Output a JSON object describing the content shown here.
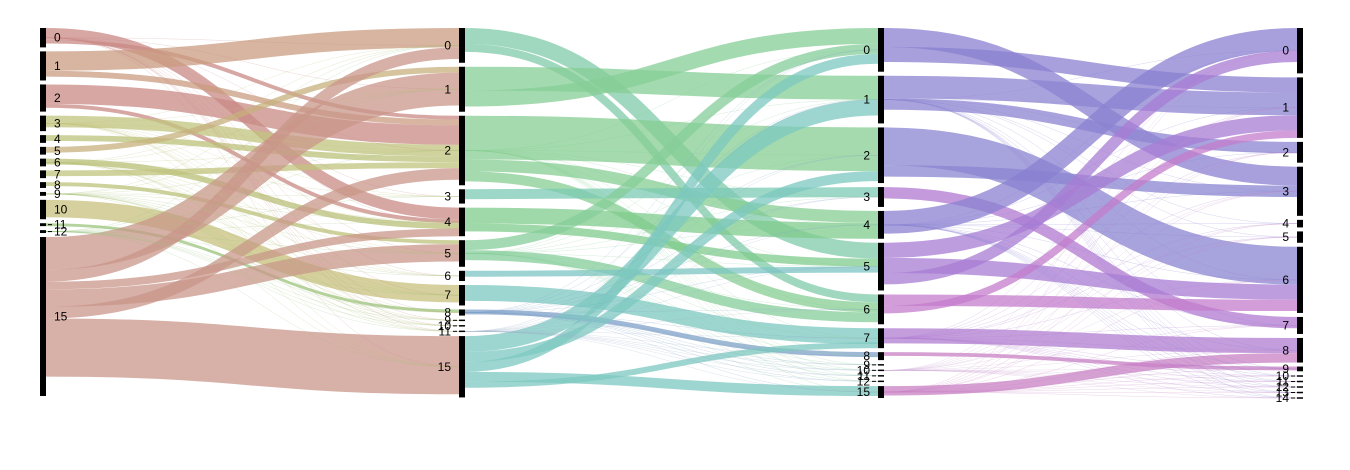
{
  "diagram": {
    "type": "alluvial",
    "columns": [
      {
        "id": "c0",
        "nodes": [
          {
            "label": "0",
            "size": 1.0,
            "color": "#c98a86"
          },
          {
            "label": "1",
            "size": 1.5,
            "color": "#c99c80"
          },
          {
            "label": "2",
            "size": 1.4,
            "color": "#c98a86"
          },
          {
            "label": "3",
            "size": 0.8,
            "color": "#c2c47e"
          },
          {
            "label": "4",
            "size": 0.4,
            "color": "#bcc27a"
          },
          {
            "label": "5",
            "size": 0.4,
            "color": "#c7b07e"
          },
          {
            "label": "6",
            "size": 0.4,
            "color": "#b9c078"
          },
          {
            "label": "7",
            "size": 0.4,
            "color": "#c2c47e"
          },
          {
            "label": "8",
            "size": 0.3,
            "color": "#bcc27a"
          },
          {
            "label": "9",
            "size": 0.2,
            "color": "#a8c47c"
          },
          {
            "label": "10",
            "size": 1.0,
            "color": "#c7c07c"
          },
          {
            "label": "11",
            "size": 0.15,
            "color": "#9cc47e"
          },
          {
            "label": "12",
            "size": 0.15,
            "color": "#9cc47e"
          },
          {
            "label": "15",
            "size": 8.2,
            "color": "#c9968a"
          }
        ]
      },
      {
        "id": "c1",
        "nodes": [
          {
            "label": "0",
            "size": 1.7,
            "color": "#7fcba8"
          },
          {
            "label": "1",
            "size": 2.2,
            "color": "#86ce96"
          },
          {
            "label": "2",
            "size": 3.4,
            "color": "#86ce92"
          },
          {
            "label": "3",
            "size": 0.7,
            "color": "#7ccab4"
          },
          {
            "label": "4",
            "size": 1.4,
            "color": "#7fcb8c"
          },
          {
            "label": "5",
            "size": 1.3,
            "color": "#86ce9a"
          },
          {
            "label": "6",
            "size": 0.5,
            "color": "#7cc6c4"
          },
          {
            "label": "7",
            "size": 1.0,
            "color": "#7cc8c0"
          },
          {
            "label": "8",
            "size": 0.3,
            "color": "#7fa0c8"
          },
          {
            "label": "9",
            "size": 0.05,
            "color": "#9ab0c8"
          },
          {
            "label": "10",
            "size": 0.05,
            "color": "#9ab0c8"
          },
          {
            "label": "11",
            "size": 0.05,
            "color": "#9ab0c8"
          },
          {
            "label": "15",
            "size": 3.0,
            "color": "#7cc8c0"
          }
        ]
      },
      {
        "id": "c2",
        "nodes": [
          {
            "label": "0",
            "size": 2.2,
            "color": "#8a80d0"
          },
          {
            "label": "1",
            "size": 2.4,
            "color": "#8c84d2"
          },
          {
            "label": "2",
            "size": 2.8,
            "color": "#8a84d0"
          },
          {
            "label": "3",
            "size": 1.0,
            "color": "#b078d0"
          },
          {
            "label": "4",
            "size": 1.4,
            "color": "#8a80d0"
          },
          {
            "label": "5",
            "size": 2.4,
            "color": "#a87cd4"
          },
          {
            "label": "6",
            "size": 1.5,
            "color": "#c47ccc"
          },
          {
            "label": "7",
            "size": 1.0,
            "color": "#b07cd0"
          },
          {
            "label": "8",
            "size": 0.4,
            "color": "#c880c4"
          },
          {
            "label": "9",
            "size": 0.05,
            "color": "#c8a0d0"
          },
          {
            "label": "10",
            "size": 0.05,
            "color": "#c8a0d0"
          },
          {
            "label": "11",
            "size": 0.05,
            "color": "#c8a0d0"
          },
          {
            "label": "12",
            "size": 0.05,
            "color": "#c8a0d0"
          },
          {
            "label": "15",
            "size": 0.6,
            "color": "#c880c4"
          }
        ]
      },
      {
        "id": "c3",
        "nodes": [
          {
            "label": "0",
            "size": 2.4
          },
          {
            "label": "1",
            "size": 3.2
          },
          {
            "label": "2",
            "size": 1.1
          },
          {
            "label": "3",
            "size": 2.6
          },
          {
            "label": "4",
            "size": 0.4
          },
          {
            "label": "5",
            "size": 0.6
          },
          {
            "label": "6",
            "size": 3.5
          },
          {
            "label": "7",
            "size": 0.9
          },
          {
            "label": "8",
            "size": 1.3
          },
          {
            "label": "9",
            "size": 0.25
          },
          {
            "label": "10",
            "size": 0.05
          },
          {
            "label": "11",
            "size": 0.05
          },
          {
            "label": "12",
            "size": 0.05
          },
          {
            "label": "13",
            "size": 0.05
          },
          {
            "label": "14",
            "size": 0.05
          }
        ]
      }
    ],
    "flows": [
      {
        "stage": 0,
        "from": "0",
        "to": "4",
        "weight": 0.6,
        "color": "#c98a86"
      },
      {
        "stage": 0,
        "from": "0",
        "to": "2",
        "weight": 0.2,
        "color": "#c98a86"
      },
      {
        "stage": 0,
        "from": "1",
        "to": "0",
        "weight": 1.0,
        "color": "#c99c80"
      },
      {
        "stage": 0,
        "from": "1",
        "to": "2",
        "weight": 0.3,
        "color": "#c99c80"
      },
      {
        "stage": 0,
        "from": "2",
        "to": "2",
        "weight": 1.0,
        "color": "#c98a86"
      },
      {
        "stage": 0,
        "from": "2",
        "to": "4",
        "weight": 0.2,
        "color": "#c98a86"
      },
      {
        "stage": 0,
        "from": "3",
        "to": "2",
        "weight": 0.6,
        "color": "#c2c47e"
      },
      {
        "stage": 0,
        "from": "4",
        "to": "2",
        "weight": 0.3,
        "color": "#bcc27a"
      },
      {
        "stage": 0,
        "from": "5",
        "to": "1",
        "weight": 0.3,
        "color": "#c7b07e"
      },
      {
        "stage": 0,
        "from": "6",
        "to": "4",
        "weight": 0.3,
        "color": "#b9c078"
      },
      {
        "stage": 0,
        "from": "7",
        "to": "2",
        "weight": 0.3,
        "color": "#c2c47e"
      },
      {
        "stage": 0,
        "from": "8",
        "to": "5",
        "weight": 0.2,
        "color": "#bcc27a"
      },
      {
        "stage": 0,
        "from": "10",
        "to": "7",
        "weight": 0.9,
        "color": "#c7c07c"
      },
      {
        "stage": 0,
        "from": "11",
        "to": "8",
        "weight": 0.15,
        "color": "#9cc47e"
      },
      {
        "stage": 0,
        "from": "15",
        "to": "1",
        "weight": 1.7,
        "color": "#c9968a"
      },
      {
        "stage": 0,
        "from": "15",
        "to": "0",
        "weight": 0.6,
        "color": "#c9968a"
      },
      {
        "stage": 0,
        "from": "15",
        "to": "4",
        "weight": 0.4,
        "color": "#c9968a"
      },
      {
        "stage": 0,
        "from": "15",
        "to": "5",
        "weight": 0.9,
        "color": "#c9968a"
      },
      {
        "stage": 0,
        "from": "15",
        "to": "2",
        "weight": 0.6,
        "color": "#c9968a"
      },
      {
        "stage": 0,
        "from": "15",
        "to": "15",
        "weight": 3.0,
        "color": "#c9968a"
      },
      {
        "stage": 1,
        "from": "0",
        "to": "5",
        "weight": 0.8,
        "color": "#7fcba8"
      },
      {
        "stage": 1,
        "from": "0",
        "to": "6",
        "weight": 0.4,
        "color": "#7fcba8"
      },
      {
        "stage": 1,
        "from": "1",
        "to": "1",
        "weight": 1.2,
        "color": "#86ce96"
      },
      {
        "stage": 1,
        "from": "1",
        "to": "0",
        "weight": 0.8,
        "color": "#86ce96"
      },
      {
        "stage": 1,
        "from": "2",
        "to": "2",
        "weight": 2.2,
        "color": "#86ce92"
      },
      {
        "stage": 1,
        "from": "2",
        "to": "4",
        "weight": 0.6,
        "color": "#86ce92"
      },
      {
        "stage": 1,
        "from": "2",
        "to": "6",
        "weight": 0.5,
        "color": "#86ce92"
      },
      {
        "stage": 1,
        "from": "3",
        "to": "3",
        "weight": 0.5,
        "color": "#7ccab4"
      },
      {
        "stage": 1,
        "from": "4",
        "to": "4",
        "weight": 0.8,
        "color": "#7fcb8c"
      },
      {
        "stage": 1,
        "from": "4",
        "to": "5",
        "weight": 0.4,
        "color": "#7fcb8c"
      },
      {
        "stage": 1,
        "from": "5",
        "to": "0",
        "weight": 0.5,
        "color": "#86ce9a"
      },
      {
        "stage": 1,
        "from": "5",
        "to": "6",
        "weight": 0.5,
        "color": "#86ce9a"
      },
      {
        "stage": 1,
        "from": "6",
        "to": "5",
        "weight": 0.3,
        "color": "#7cc6c4"
      },
      {
        "stage": 1,
        "from": "7",
        "to": "7",
        "weight": 0.8,
        "color": "#7cc8c0"
      },
      {
        "stage": 1,
        "from": "8",
        "to": "8",
        "weight": 0.25,
        "color": "#7fa0c8"
      },
      {
        "stage": 1,
        "from": "15",
        "to": "1",
        "weight": 0.8,
        "color": "#7cc8c0"
      },
      {
        "stage": 1,
        "from": "15",
        "to": "2",
        "weight": 0.5,
        "color": "#7cc8c0"
      },
      {
        "stage": 1,
        "from": "15",
        "to": "0",
        "weight": 0.5,
        "color": "#7cc8c0"
      },
      {
        "stage": 1,
        "from": "15",
        "to": "15",
        "weight": 0.5,
        "color": "#7cc8c0"
      },
      {
        "stage": 1,
        "from": "15",
        "to": "7",
        "weight": 0.3,
        "color": "#7cc8c0"
      },
      {
        "stage": 2,
        "from": "0",
        "to": "3",
        "weight": 1.0,
        "color": "#8a80d0"
      },
      {
        "stage": 2,
        "from": "0",
        "to": "1",
        "weight": 0.8,
        "color": "#8a80d0"
      },
      {
        "stage": 2,
        "from": "1",
        "to": "1",
        "weight": 1.2,
        "color": "#8c84d2"
      },
      {
        "stage": 2,
        "from": "1",
        "to": "2",
        "weight": 0.6,
        "color": "#8c84d2"
      },
      {
        "stage": 2,
        "from": "2",
        "to": "6",
        "weight": 2.0,
        "color": "#8a84d0"
      },
      {
        "stage": 2,
        "from": "2",
        "to": "3",
        "weight": 0.6,
        "color": "#8a84d0"
      },
      {
        "stage": 2,
        "from": "3",
        "to": "7",
        "weight": 0.6,
        "color": "#b078d0"
      },
      {
        "stage": 2,
        "from": "4",
        "to": "0",
        "weight": 1.2,
        "color": "#8a80d0"
      },
      {
        "stage": 2,
        "from": "5",
        "to": "1",
        "weight": 0.8,
        "color": "#a87cd4"
      },
      {
        "stage": 2,
        "from": "5",
        "to": "6",
        "weight": 0.8,
        "color": "#a87cd4"
      },
      {
        "stage": 2,
        "from": "5",
        "to": "0",
        "weight": 0.6,
        "color": "#a87cd4"
      },
      {
        "stage": 2,
        "from": "6",
        "to": "6",
        "weight": 0.6,
        "color": "#c47ccc"
      },
      {
        "stage": 2,
        "from": "6",
        "to": "1",
        "weight": 0.4,
        "color": "#c47ccc"
      },
      {
        "stage": 2,
        "from": "7",
        "to": "8",
        "weight": 0.8,
        "color": "#b07cd0"
      },
      {
        "stage": 2,
        "from": "8",
        "to": "9",
        "weight": 0.2,
        "color": "#c880c4"
      },
      {
        "stage": 2,
        "from": "15",
        "to": "8",
        "weight": 0.5,
        "color": "#c880c4"
      }
    ]
  }
}
